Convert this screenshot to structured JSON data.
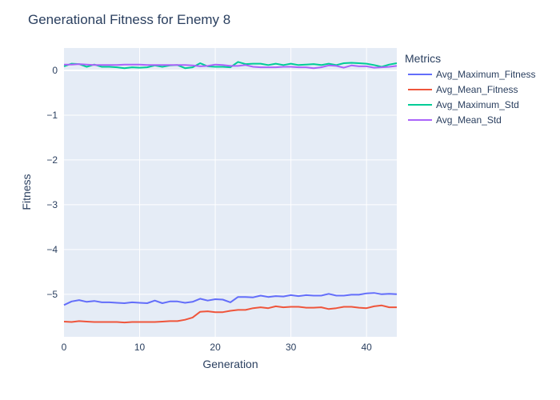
{
  "chart_data": {
    "type": "line",
    "title": "Generational Fitness for Enemy 8",
    "xlabel": "Generation",
    "ylabel": "Fitness",
    "xlim": [
      0,
      44
    ],
    "ylim": [
      -5.95,
      0.5
    ],
    "x_ticks": [
      0,
      10,
      20,
      30,
      40
    ],
    "y_ticks": [
      0,
      -1,
      -2,
      -3,
      -4,
      -5
    ],
    "grid": true,
    "legend_title": "Metrics",
    "legend_position": "right",
    "x": [
      0,
      1,
      2,
      3,
      4,
      5,
      6,
      7,
      8,
      9,
      10,
      11,
      12,
      13,
      14,
      15,
      16,
      17,
      18,
      19,
      20,
      21,
      22,
      23,
      24,
      25,
      26,
      27,
      28,
      29,
      30,
      31,
      32,
      33,
      34,
      35,
      36,
      37,
      38,
      39,
      40,
      41,
      42,
      43,
      44
    ],
    "series": [
      {
        "name": "Avg_Maximum_Fitness",
        "color": "#636efa",
        "values": [
          -5.24,
          -5.16,
          -5.13,
          -5.17,
          -5.15,
          -5.18,
          -5.18,
          -5.19,
          -5.2,
          -5.18,
          -5.19,
          -5.2,
          -5.14,
          -5.2,
          -5.16,
          -5.16,
          -5.19,
          -5.17,
          -5.1,
          -5.14,
          -5.11,
          -5.12,
          -5.18,
          -5.06,
          -5.06,
          -5.07,
          -5.03,
          -5.06,
          -5.04,
          -5.05,
          -5.02,
          -5.04,
          -5.02,
          -5.03,
          -5.03,
          -4.99,
          -5.03,
          -5.03,
          -5.01,
          -5.01,
          -4.98,
          -4.97,
          -5.0,
          -4.99,
          -5.0
        ]
      },
      {
        "name": "Avg_Mean_Fitness",
        "color": "#ef553b",
        "values": [
          -5.61,
          -5.62,
          -5.6,
          -5.61,
          -5.62,
          -5.62,
          -5.62,
          -5.62,
          -5.63,
          -5.62,
          -5.62,
          -5.62,
          -5.62,
          -5.61,
          -5.6,
          -5.6,
          -5.57,
          -5.52,
          -5.39,
          -5.38,
          -5.4,
          -5.4,
          -5.37,
          -5.35,
          -5.35,
          -5.31,
          -5.29,
          -5.31,
          -5.27,
          -5.29,
          -5.28,
          -5.28,
          -5.3,
          -5.3,
          -5.29,
          -5.33,
          -5.31,
          -5.28,
          -5.28,
          -5.3,
          -5.31,
          -5.27,
          -5.25,
          -5.29,
          -5.29
        ]
      },
      {
        "name": "Avg_Maximum_Std",
        "color": "#00cc96",
        "values": [
          0.09,
          0.15,
          0.14,
          0.08,
          0.13,
          0.08,
          0.08,
          0.07,
          0.05,
          0.07,
          0.06,
          0.07,
          0.11,
          0.08,
          0.11,
          0.12,
          0.05,
          0.07,
          0.16,
          0.09,
          0.08,
          0.08,
          0.07,
          0.19,
          0.14,
          0.15,
          0.15,
          0.12,
          0.15,
          0.12,
          0.15,
          0.12,
          0.13,
          0.14,
          0.12,
          0.15,
          0.12,
          0.16,
          0.17,
          0.16,
          0.15,
          0.12,
          0.08,
          0.13,
          0.16
        ]
      },
      {
        "name": "Avg_Mean_Std",
        "color": "#ab63fa",
        "values": [
          0.13,
          0.13,
          0.14,
          0.13,
          0.12,
          0.12,
          0.12,
          0.12,
          0.13,
          0.13,
          0.13,
          0.12,
          0.12,
          0.12,
          0.12,
          0.12,
          0.12,
          0.11,
          0.09,
          0.1,
          0.13,
          0.12,
          0.1,
          0.1,
          0.12,
          0.08,
          0.07,
          0.07,
          0.07,
          0.08,
          0.08,
          0.07,
          0.07,
          0.05,
          0.07,
          0.11,
          0.1,
          0.06,
          0.11,
          0.09,
          0.09,
          0.06,
          0.07,
          0.08,
          0.1
        ]
      }
    ]
  }
}
